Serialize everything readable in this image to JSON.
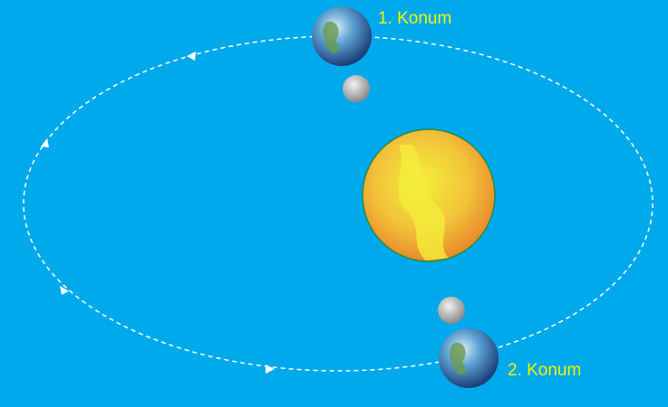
{
  "labels": [
    {
      "text": "1. Konum"
    },
    {
      "text": "2. Konum"
    }
  ]
}
